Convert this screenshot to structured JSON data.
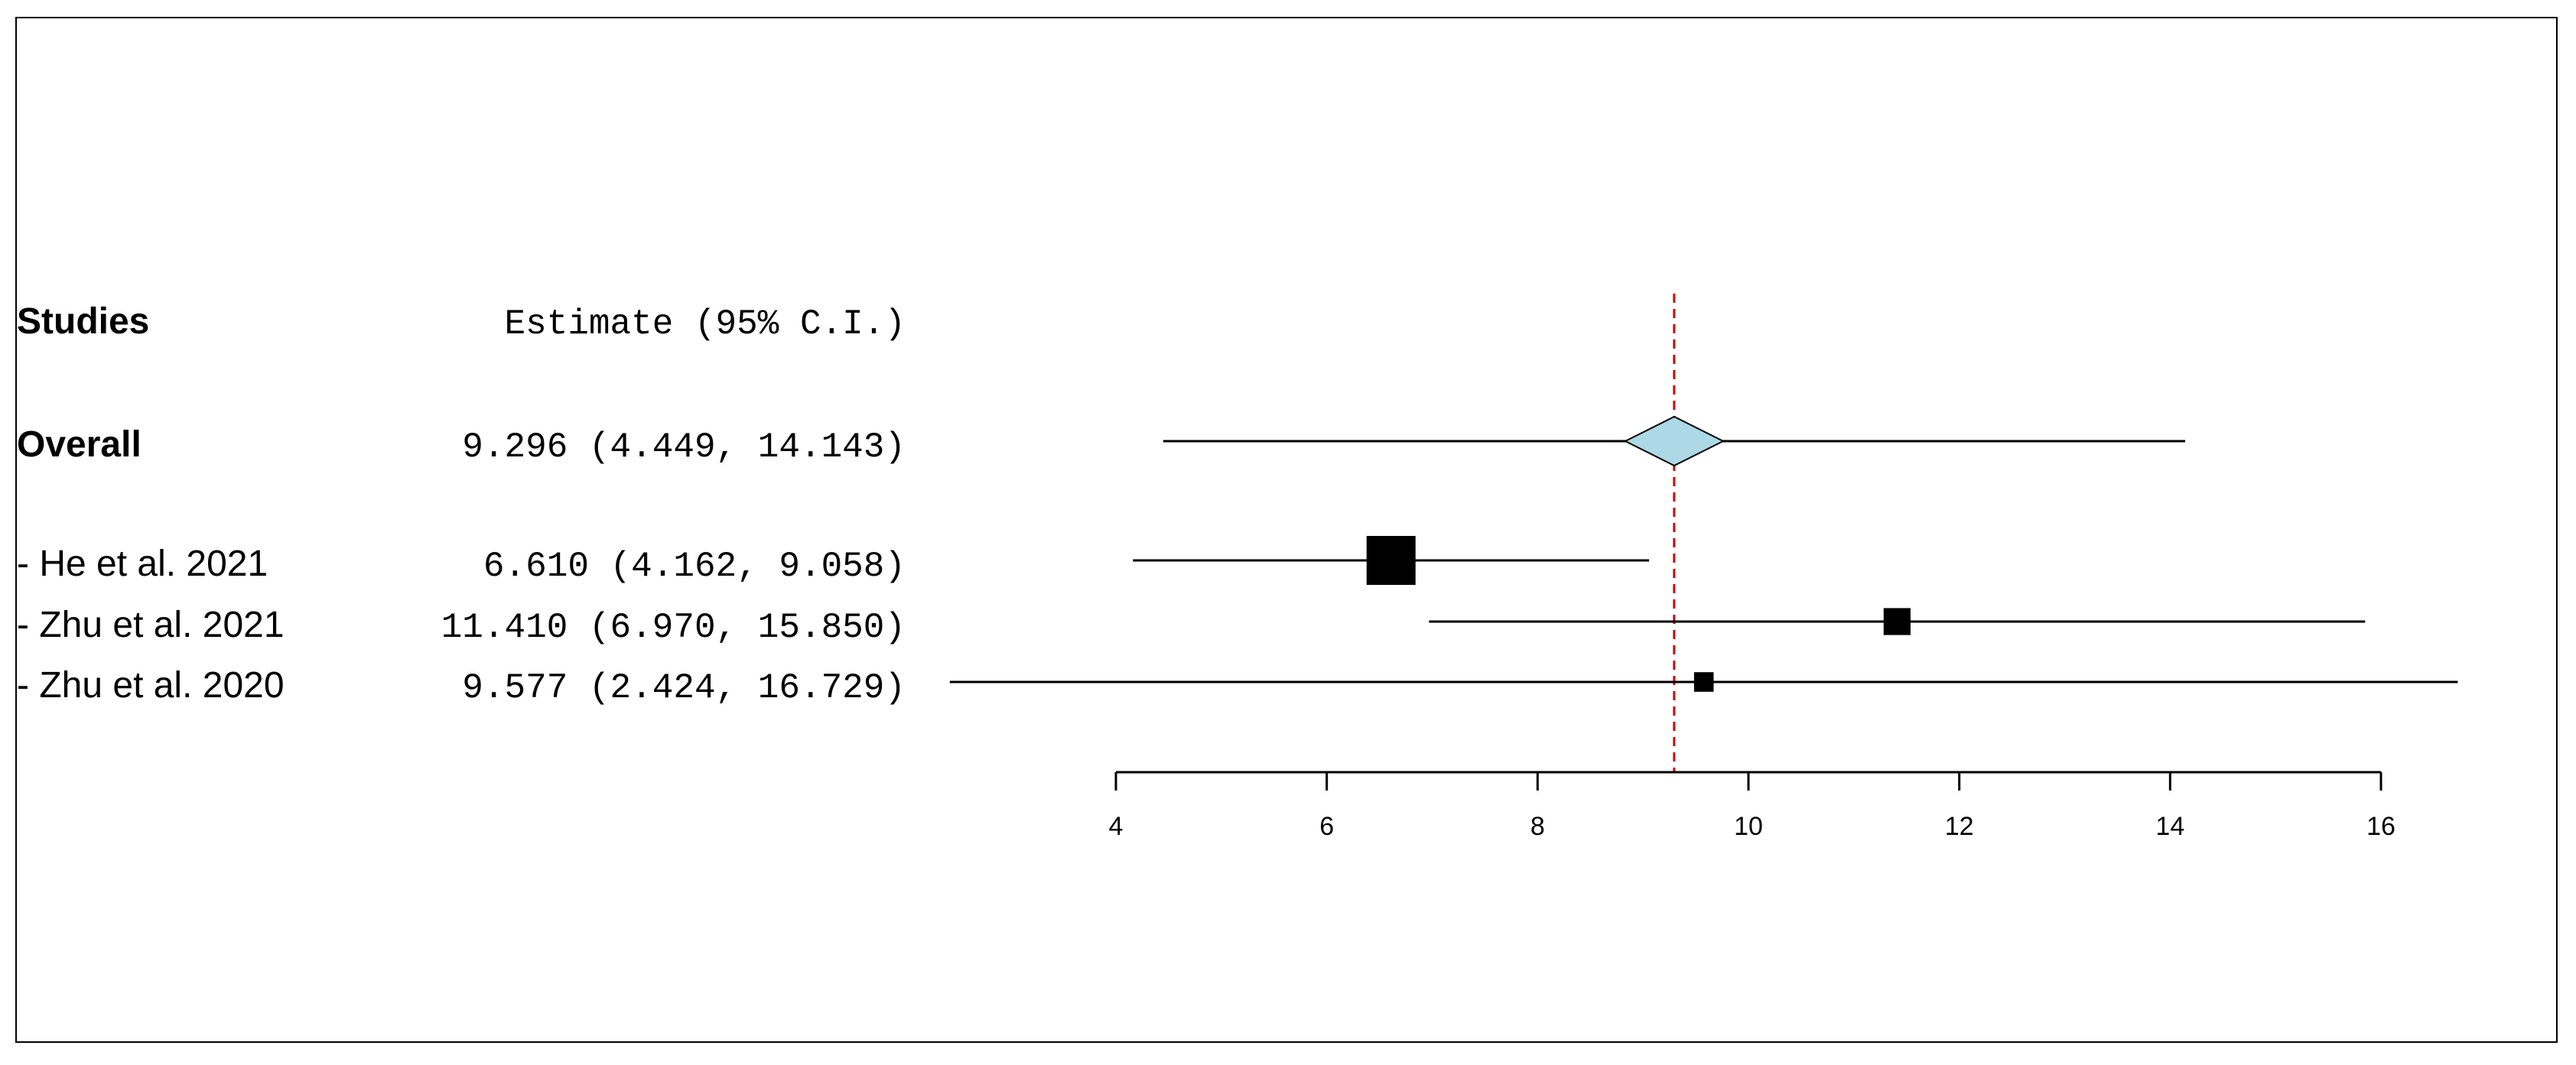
{
  "chart_data": {
    "type": "forest",
    "header": {
      "studies_label": "Studies",
      "estimate_label": "Estimate (95% C.I.)"
    },
    "overall": {
      "label": "Overall",
      "estimate": 9.296,
      "ci_low": 4.449,
      "ci_high": 14.143,
      "text": "9.296 (4.449, 14.143)",
      "color": "#add8e6"
    },
    "studies": [
      {
        "label": "- He et al. 2021",
        "estimate": 6.61,
        "ci_low": 4.162,
        "ci_high": 9.058,
        "text": "6.610 (4.162,  9.058)",
        "weight": 1.0
      },
      {
        "label": "- Zhu et al. 2021",
        "estimate": 11.41,
        "ci_low": 6.97,
        "ci_high": 15.85,
        "text": "11.410 (6.970, 15.850)",
        "weight": 0.55
      },
      {
        "label": "- Zhu et al. 2020",
        "estimate": 9.577,
        "ci_low": 2.424,
        "ci_high": 16.729,
        "text": "9.577 (2.424, 16.729)",
        "weight": 0.4
      }
    ],
    "x_axis": {
      "ticks": [
        4,
        6,
        8,
        10,
        12,
        14,
        16
      ],
      "range": [
        4,
        16
      ]
    },
    "reference_line": {
      "value": 9.296,
      "style": "dashed",
      "color": "#cc0000"
    },
    "colors": {
      "marker": "#000000",
      "line": "#000000"
    }
  }
}
